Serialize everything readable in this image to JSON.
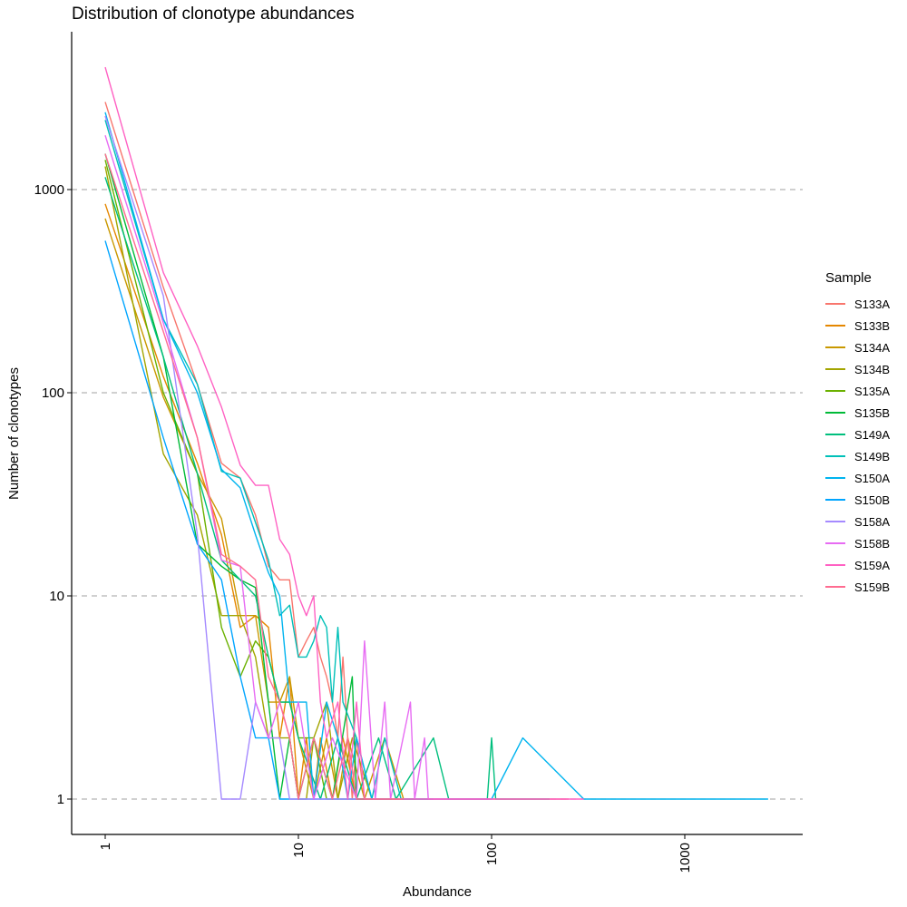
{
  "chart_data": {
    "type": "line",
    "title": "Distribution of clonotype abundances",
    "xlabel": "Abundance",
    "ylabel": "Number of clonotypes",
    "x_scale": "log10",
    "y_scale": "log10",
    "xlim": [
      0.7,
      3500
    ],
    "ylim": [
      0.6,
      5000
    ],
    "x_ticks": [
      "1",
      "10",
      "100",
      "1000"
    ],
    "y_ticks": [
      "1",
      "10",
      "100",
      "1000"
    ],
    "grid": "horizontal dashed",
    "legend_title": "Sample",
    "legend_position": "right",
    "series": [
      {
        "name": "S133A",
        "color": "#F8766D",
        "points": [
          [
            1,
            2700
          ],
          [
            2,
            330
          ],
          [
            3,
            110
          ],
          [
            4,
            45
          ],
          [
            5,
            38
          ],
          [
            6,
            25
          ],
          [
            7,
            14
          ],
          [
            8,
            12
          ],
          [
            9,
            12
          ],
          [
            10,
            5
          ],
          [
            11,
            6
          ],
          [
            12,
            7
          ],
          [
            13,
            5
          ],
          [
            14,
            4
          ],
          [
            15,
            3
          ],
          [
            16,
            2
          ],
          [
            17,
            5
          ],
          [
            18,
            2
          ],
          [
            19,
            1
          ],
          [
            20,
            2
          ],
          [
            22,
            1
          ],
          [
            25,
            1
          ],
          [
            30,
            1
          ],
          [
            40,
            1
          ],
          [
            60,
            1
          ],
          [
            120,
            1
          ],
          [
            250,
            1
          ]
        ]
      },
      {
        "name": "S133B",
        "color": "#E58700",
        "points": [
          [
            1,
            850
          ],
          [
            2,
            120
          ],
          [
            3,
            45
          ],
          [
            4,
            20
          ],
          [
            5,
            7
          ],
          [
            6,
            8
          ],
          [
            7,
            7
          ],
          [
            8,
            2
          ],
          [
            9,
            4
          ],
          [
            10,
            1
          ],
          [
            11,
            2
          ],
          [
            12,
            1
          ],
          [
            13,
            2
          ],
          [
            15,
            1
          ],
          [
            17,
            2
          ],
          [
            20,
            1
          ],
          [
            25,
            1
          ],
          [
            40,
            1
          ]
        ]
      },
      {
        "name": "S134A",
        "color": "#C99800",
        "points": [
          [
            1,
            720
          ],
          [
            2,
            95
          ],
          [
            3,
            40
          ],
          [
            4,
            24
          ],
          [
            5,
            8
          ],
          [
            6,
            8
          ],
          [
            7,
            3
          ],
          [
            8,
            3
          ],
          [
            9,
            4
          ],
          [
            10,
            2
          ],
          [
            12,
            1
          ],
          [
            14,
            2
          ],
          [
            16,
            1
          ],
          [
            18,
            2
          ],
          [
            22,
            1
          ],
          [
            28,
            2
          ],
          [
            35,
            1
          ]
        ]
      },
      {
        "name": "S134B",
        "color": "#A3A500",
        "points": [
          [
            1,
            1300
          ],
          [
            2,
            50
          ],
          [
            3,
            25
          ],
          [
            4,
            8
          ],
          [
            5,
            8
          ],
          [
            6,
            5
          ],
          [
            7,
            2
          ],
          [
            8,
            2
          ],
          [
            9,
            2
          ],
          [
            10,
            1
          ],
          [
            11,
            1
          ],
          [
            12,
            2
          ],
          [
            14,
            3
          ],
          [
            16,
            1
          ],
          [
            19,
            2
          ],
          [
            24,
            1
          ],
          [
            30,
            1
          ]
        ]
      },
      {
        "name": "S135A",
        "color": "#6BB100",
        "points": [
          [
            1,
            1400
          ],
          [
            2,
            100
          ],
          [
            3,
            40
          ],
          [
            4,
            7
          ],
          [
            5,
            4
          ],
          [
            6,
            6
          ],
          [
            7,
            5
          ],
          [
            8,
            3
          ],
          [
            9,
            3
          ],
          [
            10,
            2
          ],
          [
            12,
            2
          ],
          [
            14,
            1
          ],
          [
            18,
            1
          ],
          [
            25,
            1
          ]
        ]
      },
      {
        "name": "S135B",
        "color": "#00BA38",
        "points": [
          [
            1,
            1500
          ],
          [
            2,
            150
          ],
          [
            3,
            18
          ],
          [
            4,
            14
          ],
          [
            5,
            12
          ],
          [
            6,
            11
          ],
          [
            7,
            3
          ],
          [
            8,
            1
          ],
          [
            9,
            2
          ],
          [
            10,
            1
          ],
          [
            12,
            2
          ],
          [
            15,
            1
          ],
          [
            19,
            4
          ],
          [
            20,
            1
          ],
          [
            25,
            1
          ],
          [
            30,
            1
          ]
        ]
      },
      {
        "name": "S149A",
        "color": "#00BF7D",
        "points": [
          [
            1,
            1150
          ],
          [
            2,
            150
          ],
          [
            3,
            40
          ],
          [
            4,
            15
          ],
          [
            5,
            12
          ],
          [
            6,
            10
          ],
          [
            7,
            5
          ],
          [
            8,
            3
          ],
          [
            9,
            3
          ],
          [
            10,
            2
          ],
          [
            13,
            1
          ],
          [
            16,
            2
          ],
          [
            20,
            1
          ],
          [
            26,
            2
          ],
          [
            32,
            1
          ],
          [
            50,
            2
          ],
          [
            60,
            1
          ],
          [
            95,
            1
          ],
          [
            100,
            2
          ],
          [
            105,
            1
          ],
          [
            200,
            1
          ]
        ]
      },
      {
        "name": "S149B",
        "color": "#00C0B8",
        "points": [
          [
            1,
            2200
          ],
          [
            2,
            230
          ],
          [
            3,
            110
          ],
          [
            4,
            41
          ],
          [
            5,
            38
          ],
          [
            6,
            23
          ],
          [
            7,
            15
          ],
          [
            8,
            8
          ],
          [
            9,
            9
          ],
          [
            10,
            5
          ],
          [
            11,
            5
          ],
          [
            12,
            6
          ],
          [
            13,
            8
          ],
          [
            14,
            7
          ],
          [
            15,
            3
          ],
          [
            16,
            7
          ],
          [
            17,
            3
          ],
          [
            20,
            2
          ],
          [
            24,
            1
          ],
          [
            28,
            2
          ],
          [
            34,
            1
          ],
          [
            40,
            1
          ],
          [
            50,
            1
          ]
        ]
      },
      {
        "name": "S150A",
        "color": "#00B4EF",
        "points": [
          [
            1,
            2400
          ],
          [
            2,
            230
          ],
          [
            3,
            100
          ],
          [
            4,
            42
          ],
          [
            5,
            34
          ],
          [
            6,
            20
          ],
          [
            7,
            13
          ],
          [
            8,
            10
          ],
          [
            9,
            3
          ],
          [
            10,
            3
          ],
          [
            11,
            3
          ],
          [
            12,
            1
          ],
          [
            14,
            3
          ],
          [
            16,
            2
          ],
          [
            18,
            1
          ],
          [
            20,
            2
          ],
          [
            24,
            1
          ],
          [
            30,
            1
          ],
          [
            40,
            1
          ],
          [
            60,
            1
          ],
          [
            100,
            1
          ],
          [
            145,
            2
          ],
          [
            300,
            1
          ],
          [
            500,
            1
          ],
          [
            1000,
            1
          ],
          [
            2700,
            1
          ]
        ]
      },
      {
        "name": "S150B",
        "color": "#00A5FF",
        "points": [
          [
            1,
            560
          ],
          [
            2,
            60
          ],
          [
            3,
            18
          ],
          [
            4,
            12
          ],
          [
            5,
            4
          ],
          [
            6,
            2
          ],
          [
            7,
            2
          ],
          [
            8,
            1
          ],
          [
            10,
            1
          ],
          [
            15,
            1
          ],
          [
            20,
            1
          ],
          [
            30,
            1
          ]
        ]
      },
      {
        "name": "S158A",
        "color": "#A58AFF",
        "points": [
          [
            1,
            2300
          ],
          [
            2,
            300
          ],
          [
            3,
            20
          ],
          [
            4,
            1
          ],
          [
            5,
            1
          ],
          [
            6,
            3
          ],
          [
            7,
            2
          ],
          [
            8,
            2
          ],
          [
            9,
            1
          ],
          [
            12,
            1
          ],
          [
            20,
            1
          ]
        ]
      },
      {
        "name": "S158B",
        "color": "#E76BF3",
        "points": [
          [
            1,
            1850
          ],
          [
            2,
            220
          ],
          [
            3,
            60
          ],
          [
            4,
            15
          ],
          [
            5,
            14
          ],
          [
            6,
            3
          ],
          [
            7,
            2
          ],
          [
            8,
            3
          ],
          [
            9,
            2
          ],
          [
            10,
            3
          ],
          [
            12,
            1
          ],
          [
            15,
            2
          ],
          [
            20,
            1
          ],
          [
            22,
            6
          ],
          [
            25,
            1
          ],
          [
            28,
            3
          ],
          [
            30,
            1
          ],
          [
            38,
            3
          ],
          [
            40,
            1
          ],
          [
            45,
            2
          ],
          [
            47,
            1
          ],
          [
            50,
            1
          ],
          [
            100,
            1
          ]
        ]
      },
      {
        "name": "S159A",
        "color": "#FF61C3",
        "points": [
          [
            1,
            4000
          ],
          [
            2,
            390
          ],
          [
            3,
            170
          ],
          [
            4,
            85
          ],
          [
            5,
            44
          ],
          [
            6,
            35
          ],
          [
            7,
            35
          ],
          [
            8,
            19
          ],
          [
            9,
            16
          ],
          [
            10,
            10
          ],
          [
            11,
            8
          ],
          [
            12,
            10
          ],
          [
            13,
            3
          ],
          [
            14,
            2
          ],
          [
            16,
            3
          ],
          [
            18,
            1
          ],
          [
            20,
            3
          ],
          [
            22,
            1
          ],
          [
            28,
            1
          ],
          [
            38,
            1
          ],
          [
            60,
            1
          ],
          [
            150,
            1
          ],
          [
            300,
            1
          ]
        ]
      },
      {
        "name": "S159B",
        "color": "#FF6C91",
        "points": [
          [
            1,
            1500
          ],
          [
            2,
            200
          ],
          [
            3,
            60
          ],
          [
            4,
            16
          ],
          [
            5,
            14
          ],
          [
            6,
            12
          ],
          [
            7,
            4
          ],
          [
            8,
            3
          ],
          [
            9,
            2
          ],
          [
            10,
            1
          ],
          [
            12,
            2
          ],
          [
            15,
            1
          ],
          [
            18,
            2
          ],
          [
            20,
            1
          ],
          [
            25,
            1
          ],
          [
            35,
            1
          ]
        ]
      }
    ]
  }
}
